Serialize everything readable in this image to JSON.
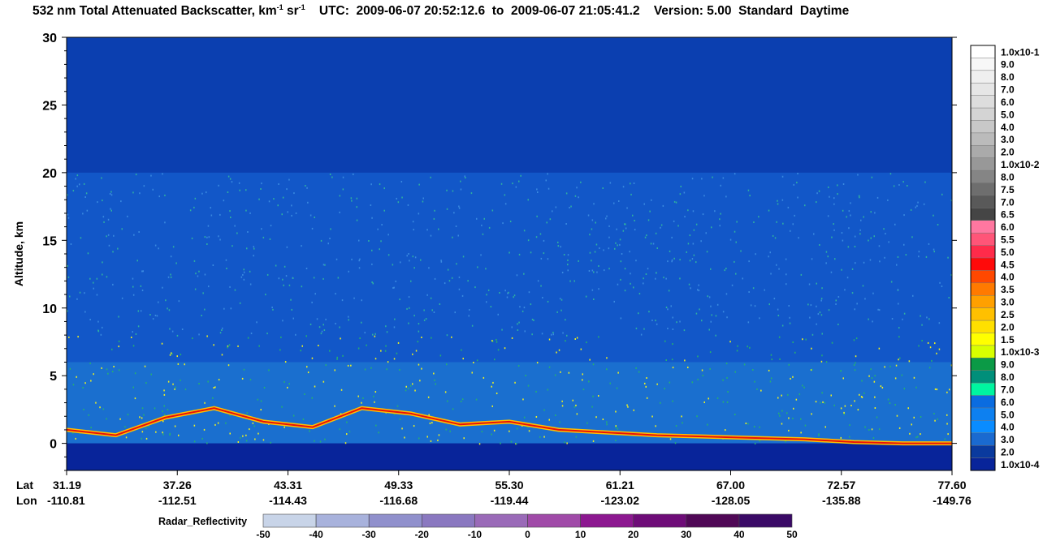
{
  "title": {
    "main": "532 nm Total Attenuated Backscatter, km",
    "unit_mid": " sr",
    "sup1": "-1",
    "sup2": "-1",
    "utc_label": "UTC:",
    "start": "2009-06-07 20:52:12.6",
    "to": "to",
    "end": "2009-06-07 21:05:41.2",
    "version": "Version: 5.00",
    "product": "Standard",
    "mode": "Daytime"
  },
  "chart_data": {
    "type": "heatmap",
    "ylabel": "Altitude, km",
    "ylim": [
      -2,
      30
    ],
    "y_ticks": [
      0,
      5,
      10,
      15,
      20,
      25,
      30
    ],
    "x_row_labels": [
      "Lat",
      "Lon"
    ],
    "x_ticks": [
      {
        "lat": "31.19",
        "lon": "-110.81"
      },
      {
        "lat": "37.26",
        "lon": "-112.51"
      },
      {
        "lat": "43.31",
        "lon": "-114.43"
      },
      {
        "lat": "49.33",
        "lon": "-116.68"
      },
      {
        "lat": "55.30",
        "lon": "-119.44"
      },
      {
        "lat": "61.21",
        "lon": "-123.02"
      },
      {
        "lat": "67.00",
        "lon": "-128.05"
      },
      {
        "lat": "72.57",
        "lon": "-135.88"
      },
      {
        "lat": "77.60",
        "lon": "-149.76"
      }
    ],
    "surface_altitude_km": [
      1.0,
      0.6,
      1.9,
      2.6,
      1.6,
      1.2,
      2.6,
      2.2,
      1.4,
      1.6,
      1.0,
      0.8,
      0.6,
      0.5,
      0.4,
      0.3,
      0.1,
      0.0,
      0.0
    ],
    "colorbar": {
      "labels": [
        "1.0x10-1",
        "9.0",
        "8.0",
        "7.0",
        "6.0",
        "5.0",
        "4.0",
        "3.0",
        "2.0",
        "1.0x10-2",
        "8.0",
        "7.5",
        "7.0",
        "6.5",
        "6.0",
        "5.5",
        "5.0",
        "4.5",
        "4.0",
        "3.5",
        "3.0",
        "2.5",
        "2.0",
        "1.5",
        "1.0x10-3",
        "9.0",
        "8.0",
        "7.0",
        "6.0",
        "5.0",
        "4.0",
        "3.0",
        "2.0",
        "1.0x10-4"
      ],
      "colors": [
        "#ffffff",
        "#f7f7f7",
        "#efefef",
        "#e6e6e6",
        "#dddddd",
        "#d4d4d4",
        "#c8c8c8",
        "#bbbbbb",
        "#aaaaaa",
        "#989898",
        "#858585",
        "#6e6e6e",
        "#595959",
        "#454545",
        "#ff77a0",
        "#ff5578",
        "#ff2b4a",
        "#ff0a0a",
        "#ff4800",
        "#ff7a00",
        "#ffa000",
        "#ffc000",
        "#ffe000",
        "#ffff00",
        "#d8ff00",
        "#0b9a46",
        "#008f7a",
        "#00f5a0",
        "#0a6ce0",
        "#0d80f0",
        "#0a8cff",
        "#1a6ad0",
        "#0a3a9e",
        "#08249a"
      ]
    },
    "radar_reflectivity": {
      "label": "Radar_Reflectivity",
      "ticks": [
        "-50",
        "-40",
        "-30",
        "-20",
        "-10",
        "0",
        "10",
        "20",
        "30",
        "40",
        "50"
      ],
      "colors": [
        "#c8d4e8",
        "#a8b2dc",
        "#9090cc",
        "#8a78c0",
        "#9a6ab8",
        "#a04aa8",
        "#8c1890",
        "#6e0c78",
        "#500856",
        "#3a0a66",
        "#300890"
      ]
    }
  }
}
